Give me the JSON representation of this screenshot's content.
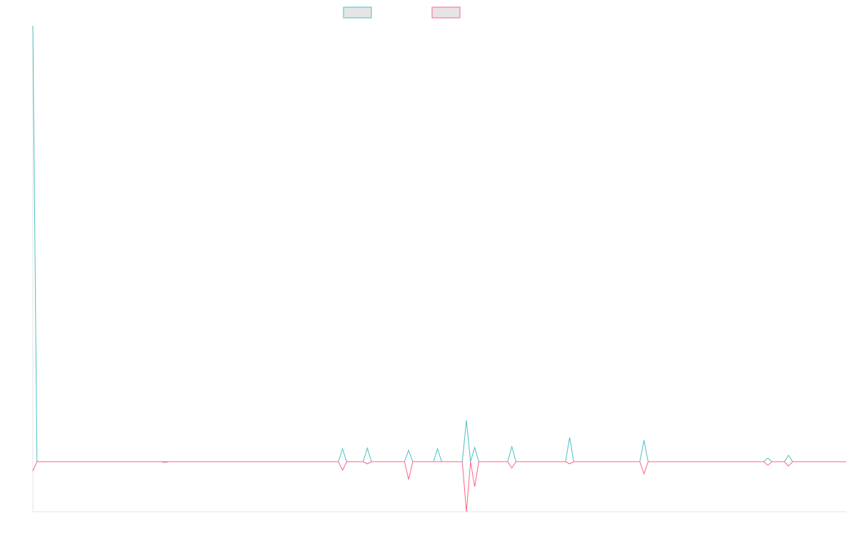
{
  "chart_data": {
    "type": "line",
    "title": "",
    "xlabel": "",
    "ylabel": "",
    "grid": false,
    "legend_position": "top-center",
    "x": [
      0,
      1,
      2,
      3,
      4,
      5,
      6,
      7,
      8,
      9,
      10,
      11,
      12,
      13,
      14,
      15,
      16,
      17,
      18,
      19,
      20,
      21,
      22,
      23,
      24,
      25,
      26,
      27,
      28,
      29,
      30,
      31,
      32,
      33,
      34,
      35,
      36,
      37,
      38,
      39,
      40,
      41,
      42,
      43,
      44,
      45,
      46,
      47,
      48,
      49,
      50,
      51,
      52,
      53,
      54,
      55,
      56,
      57,
      58,
      59,
      60,
      61,
      62,
      63,
      64,
      65,
      66,
      67,
      68,
      69,
      70,
      71,
      72,
      73,
      74,
      75,
      76,
      77,
      78,
      79,
      80,
      81,
      82,
      83,
      84,
      85,
      86,
      87,
      88,
      89,
      90,
      91,
      92,
      93,
      94,
      95,
      96,
      97,
      98,
      99,
      100,
      101,
      102,
      103,
      104,
      105,
      106,
      107,
      108,
      109,
      110,
      111,
      112,
      113,
      114,
      115,
      116,
      117,
      118,
      119,
      120,
      121,
      122,
      123,
      124,
      125,
      126,
      127,
      128,
      129,
      130,
      131,
      132,
      133,
      134,
      135,
      136,
      137,
      138,
      139,
      140,
      141,
      142,
      143,
      144,
      145,
      146,
      147,
      148,
      149,
      150,
      151,
      152,
      153,
      154,
      155,
      156,
      157,
      158,
      159,
      160,
      161,
      162,
      163,
      164,
      165,
      166,
      167,
      168,
      169,
      170,
      171,
      172,
      173,
      174,
      175,
      176,
      177,
      178,
      179,
      180,
      181,
      182,
      183,
      184,
      185,
      186,
      187,
      188,
      189,
      190,
      191,
      192,
      193,
      194,
      195,
      196,
      197
    ],
    "xlim": [
      0,
      197
    ],
    "ylim": [
      -70,
      610
    ],
    "series": [
      {
        "name": "",
        "color": "#4bc0c0",
        "points": [
          [
            0,
            610
          ],
          [
            1,
            0
          ],
          [
            74,
            0
          ],
          [
            75,
            18
          ],
          [
            76,
            0
          ],
          [
            80,
            0
          ],
          [
            81,
            19
          ],
          [
            82,
            0
          ],
          [
            90,
            0
          ],
          [
            91,
            16
          ],
          [
            92,
            0
          ],
          [
            97,
            0
          ],
          [
            98,
            18
          ],
          [
            99,
            0
          ],
          [
            104,
            0
          ],
          [
            105,
            58
          ],
          [
            106,
            0
          ],
          [
            107,
            20
          ],
          [
            108,
            0
          ],
          [
            115,
            0
          ],
          [
            116,
            21
          ],
          [
            117,
            0
          ],
          [
            129,
            0
          ],
          [
            130,
            34
          ],
          [
            131,
            0
          ],
          [
            147,
            0
          ],
          [
            148,
            30
          ],
          [
            149,
            0
          ],
          [
            177,
            0
          ],
          [
            178,
            5
          ],
          [
            179,
            0
          ],
          [
            182,
            0
          ],
          [
            183,
            9
          ],
          [
            184,
            0
          ],
          [
            197,
            0
          ]
        ]
      },
      {
        "name": "",
        "color": "#ff6384",
        "points": [
          [
            0,
            -13
          ],
          [
            1,
            0
          ],
          [
            31,
            0
          ],
          [
            32,
            -1
          ],
          [
            33,
            0
          ],
          [
            74,
            0
          ],
          [
            75,
            -12
          ],
          [
            76,
            0
          ],
          [
            80,
            0
          ],
          [
            81,
            -3
          ],
          [
            82,
            0
          ],
          [
            90,
            0
          ],
          [
            91,
            -25
          ],
          [
            92,
            0
          ],
          [
            104,
            0
          ],
          [
            105,
            -70
          ],
          [
            106,
            0
          ],
          [
            107,
            -35
          ],
          [
            108,
            0
          ],
          [
            115,
            0
          ],
          [
            116,
            -9
          ],
          [
            117,
            0
          ],
          [
            129,
            0
          ],
          [
            130,
            -3
          ],
          [
            131,
            0
          ],
          [
            147,
            0
          ],
          [
            148,
            -17
          ],
          [
            149,
            0
          ],
          [
            177,
            0
          ],
          [
            178,
            -5
          ],
          [
            179,
            0
          ],
          [
            182,
            0
          ],
          [
            183,
            -6
          ],
          [
            184,
            0
          ],
          [
            197,
            0
          ]
        ]
      }
    ]
  }
}
